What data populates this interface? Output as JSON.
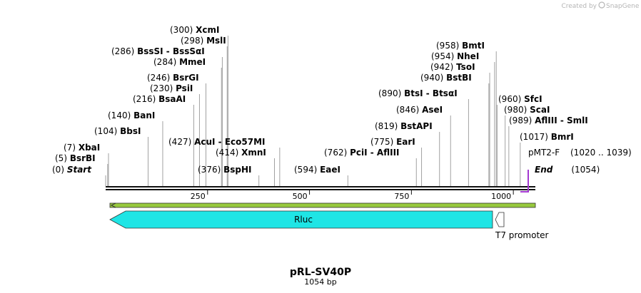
{
  "watermark": {
    "prefix": "Created by",
    "brand": "SnapGene"
  },
  "plasmid": {
    "name": "pRL-SV40P",
    "length_label": "1054 bp",
    "length": 1054
  },
  "ruler": {
    "ticks": [
      "250",
      "500",
      "750",
      "1000"
    ]
  },
  "sites": [
    {
      "pos": "(0)",
      "name": "Start",
      "italic": true
    },
    {
      "pos": "(5)",
      "name": "BsrBI"
    },
    {
      "pos": "(7)",
      "name": "XbaI"
    },
    {
      "pos": "(104)",
      "name": "BbsI"
    },
    {
      "pos": "(140)",
      "name": "BanI"
    },
    {
      "pos": "(216)",
      "name": "BsaAI"
    },
    {
      "pos": "(230)",
      "name": "PsiI"
    },
    {
      "pos": "(246)",
      "name": "BsrGI"
    },
    {
      "pos": "(284)",
      "name": "MmeI"
    },
    {
      "pos": "(286)",
      "name": "BssSI  -  BssSαI"
    },
    {
      "pos": "(298)",
      "name": "MslI"
    },
    {
      "pos": "(300)",
      "name": "XcmI"
    },
    {
      "pos": "(376)",
      "name": "BspHI"
    },
    {
      "pos": "(414)",
      "name": "XmnI"
    },
    {
      "pos": "(427)",
      "name": "AcuI  -  Eco57MI"
    },
    {
      "pos": "(594)",
      "name": "EaeI"
    },
    {
      "pos": "(762)",
      "name": "PciI  -  AflIII"
    },
    {
      "pos": "(775)",
      "name": "EarI"
    },
    {
      "pos": "(819)",
      "name": "BstAPI"
    },
    {
      "pos": "(846)",
      "name": "AseI"
    },
    {
      "pos": "(890)",
      "name": "BtsI  -  BtsαI"
    },
    {
      "pos": "(940)",
      "name": "BstBI"
    },
    {
      "pos": "(942)",
      "name": "TsoI"
    },
    {
      "pos": "(954)",
      "name": "NheI"
    },
    {
      "pos": "(958)",
      "name": "BmtI"
    },
    {
      "pos": "(960)",
      "name": "SfcI"
    },
    {
      "pos": "(980)",
      "name": "ScaI"
    },
    {
      "pos": "(989)",
      "name": "AflIII  -  SmlI"
    },
    {
      "pos": "(1017)",
      "name": "BmrI"
    },
    {
      "pos": "(1054)",
      "name": "End",
      "italic": true
    }
  ],
  "primer": {
    "name": "pMT2-F",
    "range": "(1020 .. 1039)",
    "color": "#a339d1"
  },
  "features": {
    "rluc": {
      "label": "Rluc",
      "color": "#1fe5e5"
    },
    "t7": {
      "label": "T7 promoter",
      "color": "#ffffff"
    },
    "backbone_color": "#97c93d"
  }
}
